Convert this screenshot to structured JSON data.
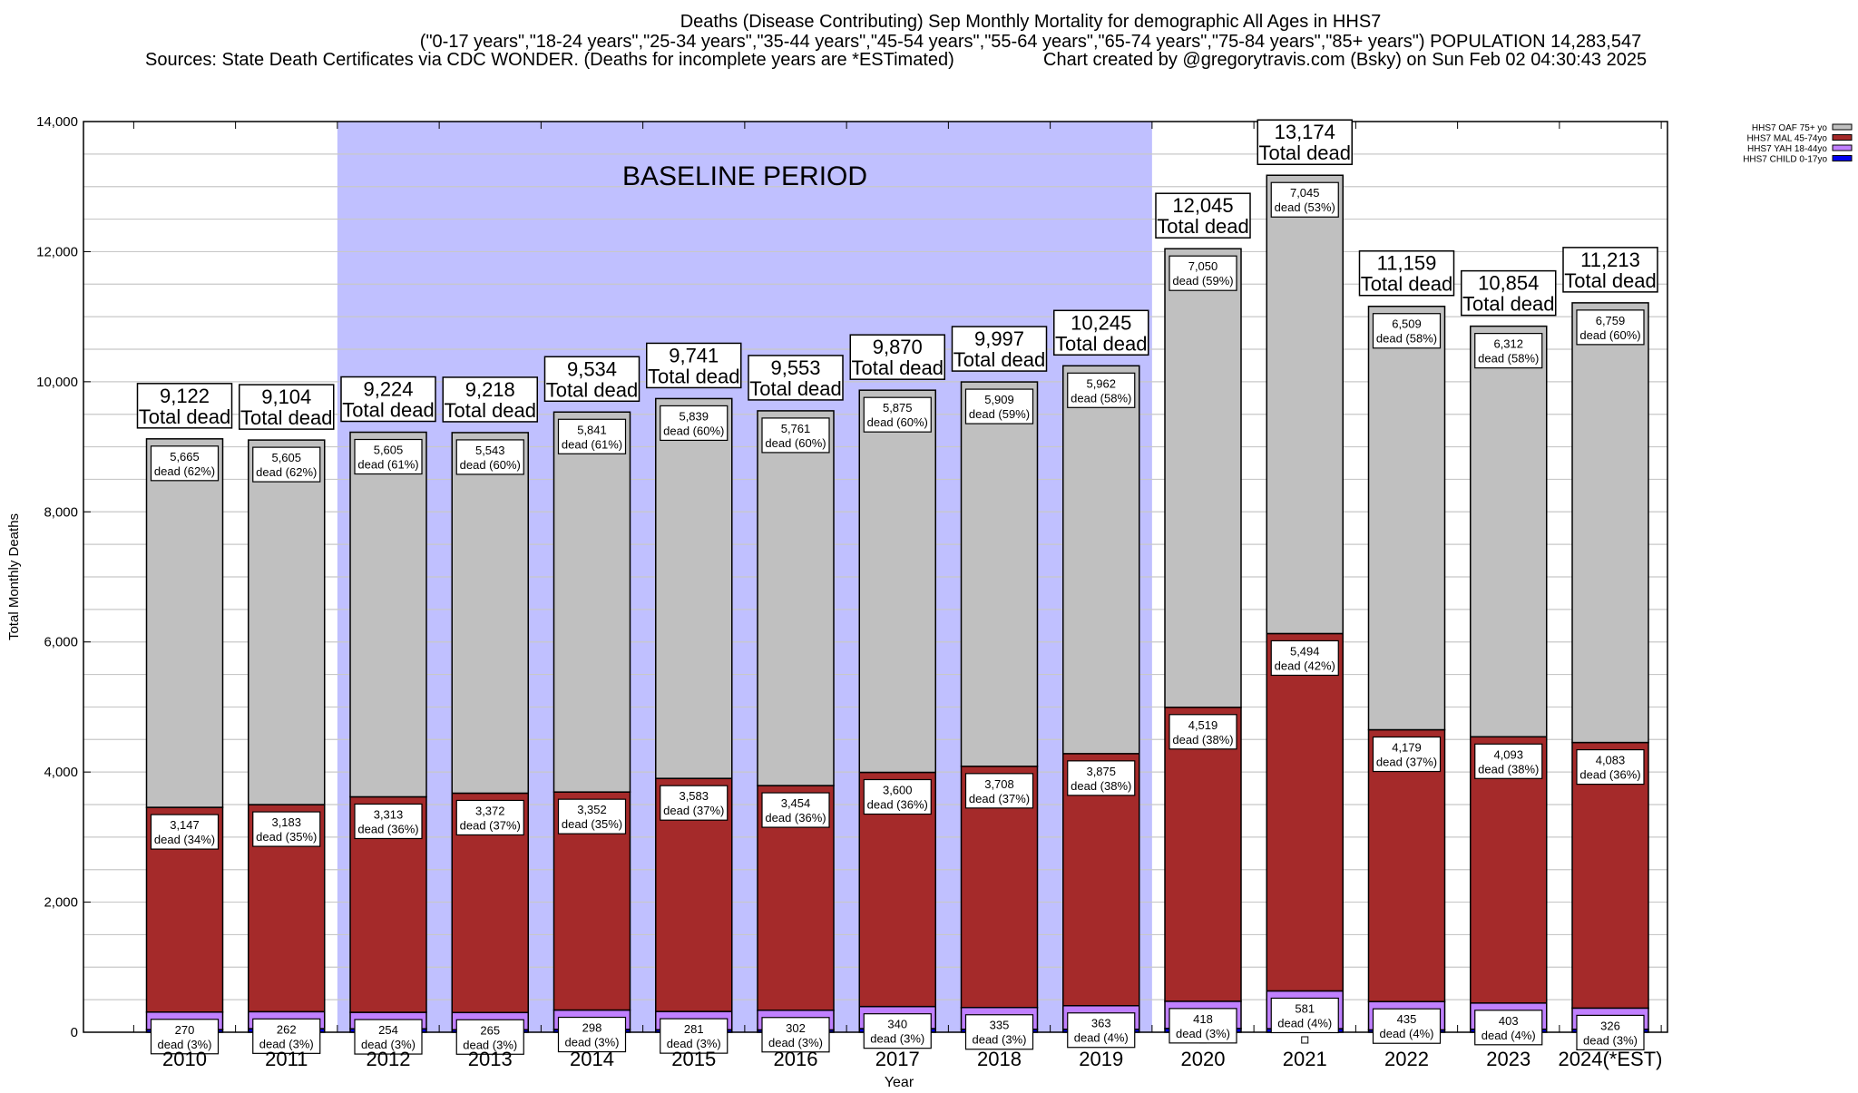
{
  "chart_data": {
    "type": "bar",
    "stacked": true,
    "title": "Deaths (Disease Contributing) Sep Monthly Mortality for demographic All Ages in HHS7",
    "subtitle": "(\"0-17 years\",\"18-24 years\",\"25-34 years\",\"35-44 years\",\"45-54 years\",\"55-64 years\",\"65-74 years\",\"75-84 years\",\"85+ years\") POPULATION 14,283,547",
    "sources": "Sources: State Death Certificates via CDC WONDER. (Deaths for incomplete years are *ESTimated)",
    "credit": "Chart created by @gregorytravis.com (Bsky) on Sun Feb 02 04:30:43 2025",
    "xlabel": "Year",
    "ylabel": "Total Monthly Deaths",
    "ylim": [
      0,
      14000
    ],
    "yticks": [
      0,
      2000,
      4000,
      6000,
      8000,
      10000,
      12000,
      14000
    ],
    "ytick_labels": [
      "0",
      "2,000",
      "4,000",
      "6,000",
      "8,000",
      "10,000",
      "12,000",
      "14,000"
    ],
    "grid": true,
    "legend_position": "top-right",
    "annotation": "BASELINE PERIOD",
    "baseline_period": [
      "2012",
      "2019"
    ],
    "baseline_color": "#c0c0ff",
    "total_suffix": "Total dead",
    "segment_word": "dead",
    "categories": [
      "2010",
      "2011",
      "2012",
      "2013",
      "2014",
      "2015",
      "2016",
      "2017",
      "2018",
      "2019",
      "2020",
      "2021",
      "2022",
      "2023",
      "2024(*EST)"
    ],
    "totals": [
      9122,
      9104,
      9224,
      9218,
      9534,
      9741,
      9553,
      9870,
      9997,
      10245,
      12045,
      13174,
      11159,
      10854,
      11213
    ],
    "total_labels": [
      "9,122",
      "9,104",
      "9,224",
      "9,218",
      "9,534",
      "9,741",
      "9,553",
      "9,870",
      "9,997",
      "10,245",
      "12,045",
      "13,174",
      "11,159",
      "10,854",
      "11,213"
    ],
    "series": [
      {
        "name": "HHS7 CHILD 0-17yo",
        "color": "#0000ee",
        "values": [
          40,
          54,
          52,
          38,
          43,
          38,
          36,
          55,
          45,
          45,
          58,
          54,
          36,
          46,
          45
        ]
      },
      {
        "name": "HHS7 YAH 18-44yo",
        "color": "#c080ff",
        "values": [
          270,
          262,
          254,
          265,
          298,
          281,
          302,
          340,
          335,
          363,
          418,
          581,
          435,
          403,
          326
        ],
        "labels": [
          "270",
          "262",
          "254",
          "265",
          "298",
          "281",
          "302",
          "340",
          "335",
          "363",
          "418",
          "581",
          "435",
          "403",
          "326"
        ],
        "percents": [
          "3%",
          "3%",
          "3%",
          "3%",
          "3%",
          "3%",
          "3%",
          "3%",
          "3%",
          "4%",
          "3%",
          "4%",
          "4%",
          "4%",
          "3%"
        ]
      },
      {
        "name": "HHS7 MAL 45-74yo",
        "color": "#a52a2a",
        "values": [
          3147,
          3183,
          3313,
          3372,
          3352,
          3583,
          3454,
          3600,
          3708,
          3875,
          4519,
          5494,
          4179,
          4093,
          4083
        ],
        "labels": [
          "3,147",
          "3,183",
          "3,313",
          "3,372",
          "3,352",
          "3,583",
          "3,454",
          "3,600",
          "3,708",
          "3,875",
          "4,519",
          "5,494",
          "4,179",
          "4,093",
          "4,083"
        ],
        "percents": [
          "34%",
          "35%",
          "36%",
          "37%",
          "35%",
          "37%",
          "36%",
          "36%",
          "37%",
          "38%",
          "38%",
          "42%",
          "37%",
          "38%",
          "36%"
        ]
      },
      {
        "name": "HHS7 OAF 75+ yo",
        "color": "#c0c0c0",
        "values": [
          5665,
          5605,
          5605,
          5543,
          5841,
          5839,
          5761,
          5875,
          5909,
          5962,
          7050,
          7045,
          6509,
          6312,
          6759
        ],
        "labels": [
          "5,665",
          "5,605",
          "5,605",
          "5,543",
          "5,841",
          "5,839",
          "5,761",
          "5,875",
          "5,909",
          "5,962",
          "7,050",
          "7,045",
          "6,509",
          "6,312",
          "6,759"
        ],
        "percents": [
          "62%",
          "62%",
          "61%",
          "60%",
          "61%",
          "60%",
          "60%",
          "60%",
          "59%",
          "58%",
          "59%",
          "53%",
          "58%",
          "58%",
          "60%"
        ]
      }
    ],
    "legend_order": [
      "HHS7 OAF 75+ yo",
      "HHS7 MAL 45-74yo",
      "HHS7 YAH 18-44yo",
      "HHS7 CHILD 0-17yo"
    ]
  }
}
